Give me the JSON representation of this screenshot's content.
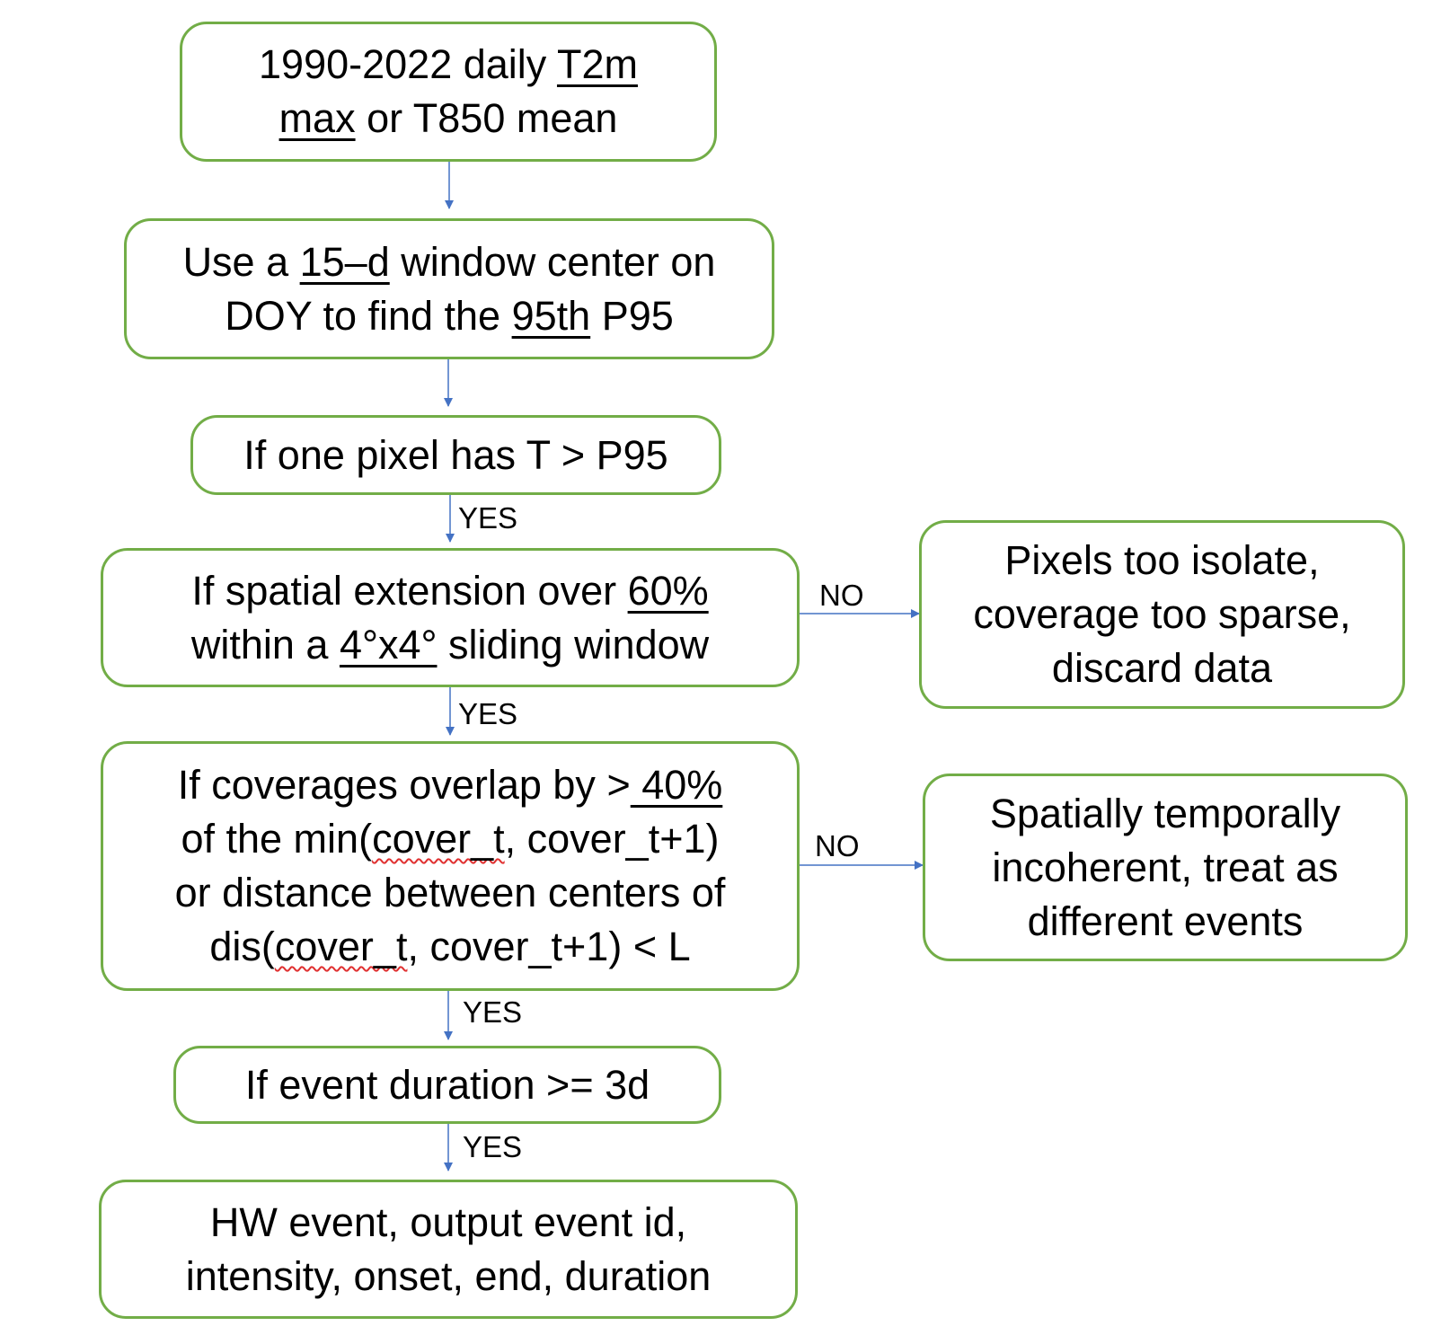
{
  "nodes": {
    "input": {
      "l1a": "1990-2022 daily ",
      "l1b": "T2m",
      "l2a": "max",
      "l2b": " or T850 mean"
    },
    "percentile": {
      "l1a": "Use a ",
      "l1b": "15–d",
      "l1c": " window center on",
      "l2a": "DOY to find the ",
      "l2b": "95th",
      "l2c": " P95"
    },
    "threshold": {
      "l1": "If one pixel has T > P95"
    },
    "spatial": {
      "l1a": "If spatial extension over ",
      "l1b": "60%",
      "l2a": "within a ",
      "l2b": "4°x4°",
      "l2c": " sliding window"
    },
    "discard": {
      "l1": "Pixels too isolate,",
      "l2": "coverage too sparse,",
      "l3": "discard data"
    },
    "overlap": {
      "l1a": "If coverages overlap by >",
      "l1b": " 40%",
      "l2a": "of the min(",
      "l2b": "cover_t",
      "l2c": ", cover_t+1)",
      "l3": "or distance between centers of",
      "l4a": "dis(",
      "l4b": "cover_t",
      "l4c": ", cover_t+1) < L"
    },
    "incoherent": {
      "l1": "Spatially temporally",
      "l2": "incoherent, treat as",
      "l3": "different events"
    },
    "duration": {
      "l1": "If event duration >= 3d"
    },
    "output": {
      "l1": "HW event, output event id,",
      "l2": "intensity, onset, end, duration"
    }
  },
  "edges": {
    "yes1": "YES",
    "yes2": "YES",
    "yes3": "YES",
    "yes4": "YES",
    "no1": "NO",
    "no2": "NO"
  },
  "colors": {
    "box_border": "#72ad47",
    "arrow": "#4472c4",
    "spellcheck": "#e03030"
  }
}
